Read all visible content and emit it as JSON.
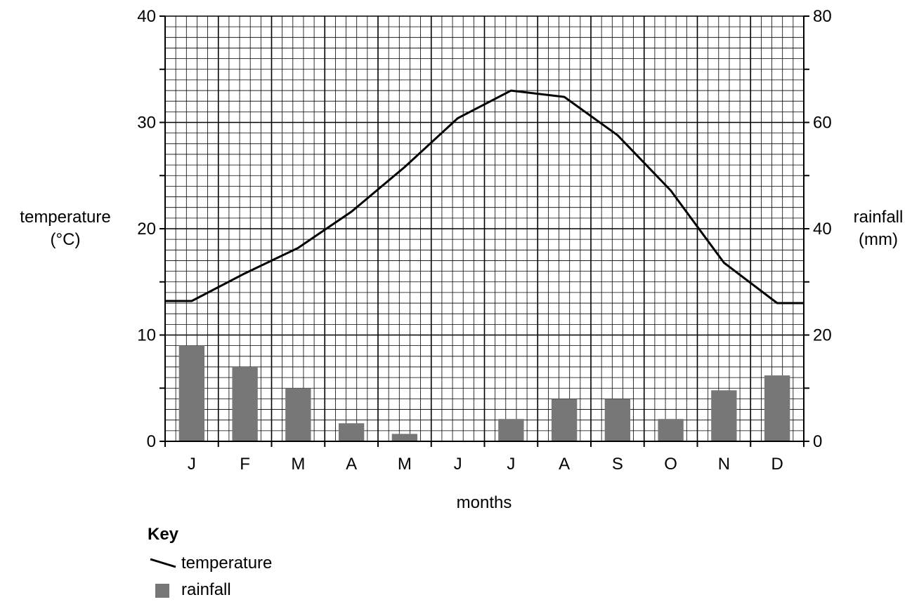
{
  "chart_data": {
    "type": "bar+line",
    "categories": [
      "J",
      "F",
      "M",
      "A",
      "M",
      "J",
      "J",
      "A",
      "S",
      "O",
      "N",
      "D"
    ],
    "xlabel": "months",
    "ylabel_lines": [
      "temperature",
      "(°C)"
    ],
    "y2label_lines": [
      "rainfall",
      "(mm)"
    ],
    "ylim": [
      0,
      40
    ],
    "y_ticks": [
      0,
      10,
      20,
      30,
      40
    ],
    "y2lim": [
      0,
      80
    ],
    "y2_ticks": [
      0,
      20,
      40,
      60,
      80
    ],
    "grid": true,
    "legend_position": "bottom-left",
    "series": [
      {
        "name": "temperature",
        "type": "line",
        "axis": "left",
        "color": "#000000",
        "x": [
          0,
          0.5,
          1.5,
          2.5,
          3.5,
          4.5,
          5.5,
          6.5,
          7.5,
          8.5,
          9.5,
          10.5,
          11.5,
          12
        ],
        "values": [
          13.2,
          13.2,
          15.8,
          18.2,
          21.6,
          25.8,
          30.4,
          33.0,
          32.4,
          28.8,
          23.6,
          16.8,
          13.0,
          13.0
        ]
      },
      {
        "name": "rainfall",
        "type": "bar",
        "axis": "right",
        "color": "#777777",
        "values": [
          18,
          14,
          10,
          3.4,
          1.4,
          0,
          4.2,
          8,
          8,
          4.2,
          9.6,
          12.4
        ]
      }
    ]
  },
  "key": {
    "title": "Key",
    "items": [
      {
        "label": "temperature"
      },
      {
        "label": "rainfall"
      }
    ]
  }
}
